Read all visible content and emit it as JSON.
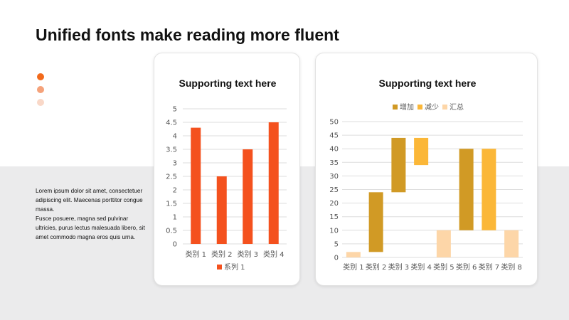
{
  "slide": {
    "title": "Unified fonts make reading more fluent",
    "body_line_1": "Lorem ipsum dolor sit amet, consectetuer adipiscing elit. Maecenas porttitor congue massa.",
    "body_line_2": "Fusce posuere, magna sed pulvinar ultricies, purus lectus malesuada libero, sit amet commodo magna eros quis urna."
  },
  "colors": {
    "accent": "#f26a1b",
    "dot_light": "#f5a27a",
    "dot_lighter": "#f9d8c8",
    "bar_orange": "#f4511e",
    "increase": "#d19a25",
    "decrease": "#fbb738",
    "total": "#fdd6a8"
  },
  "chart_data": [
    {
      "type": "bar",
      "title": "Supporting text here",
      "categories": [
        "类别 1",
        "类别 2",
        "类别 3",
        "类别 4"
      ],
      "series": [
        {
          "name": "系列 1",
          "values": [
            4.3,
            2.5,
            3.5,
            4.5
          ]
        }
      ],
      "ylim": [
        0,
        5
      ],
      "yticks": [
        "0",
        "0.5",
        "1",
        "1.5",
        "2",
        "2.5",
        "3",
        "3.5",
        "4",
        "4.5",
        "5"
      ],
      "grid": true,
      "legend": "bottom"
    },
    {
      "type": "bar",
      "subtype": "waterfall",
      "title": "Supporting text here",
      "categories": [
        "类别 1",
        "类别 2",
        "类别 3",
        "类别 4",
        "类别 5",
        "类别 6",
        "类别 7",
        "类别 8"
      ],
      "legend_entries": [
        "增加",
        "减少",
        "汇总"
      ],
      "bars": [
        {
          "kind": "汇总",
          "low": 0,
          "high": 2
        },
        {
          "kind": "增加",
          "low": 2,
          "high": 24
        },
        {
          "kind": "增加",
          "low": 24,
          "high": 44
        },
        {
          "kind": "减少",
          "low": 34,
          "high": 44
        },
        {
          "kind": "汇总",
          "low": 0,
          "high": 10
        },
        {
          "kind": "增加",
          "low": 10,
          "high": 40
        },
        {
          "kind": "减少",
          "low": 10,
          "high": 40
        },
        {
          "kind": "汇总",
          "low": 0,
          "high": 10
        }
      ],
      "ylim": [
        0,
        50
      ],
      "yticks": [
        "0",
        "5",
        "10",
        "15",
        "20",
        "25",
        "30",
        "35",
        "40",
        "45",
        "50"
      ],
      "grid": true,
      "legend": "top"
    }
  ]
}
